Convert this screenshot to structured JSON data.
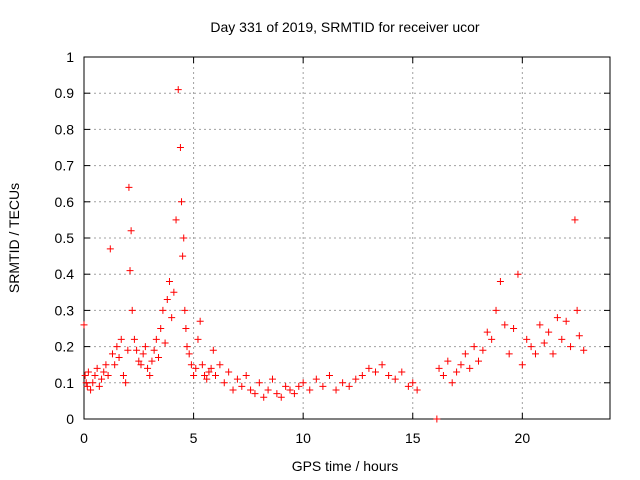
{
  "chart_data": {
    "type": "scatter",
    "title": "Day 331 of 2019, SRMTID for receiver ucor",
    "xlabel": "GPS time / hours",
    "ylabel": "SRMTID / TECUs",
    "xlim": [
      0,
      24
    ],
    "ylim": [
      0,
      1
    ],
    "xticks": [
      0,
      5,
      10,
      15,
      20
    ],
    "xtick_labels": [
      "0",
      "5",
      "10",
      "15",
      "20"
    ],
    "yticks": [
      0,
      0.1,
      0.2,
      0.3,
      0.4,
      0.5,
      0.6,
      0.7,
      0.8,
      0.9,
      1
    ],
    "ytick_labels": [
      "0",
      "0.1",
      "0.2",
      "0.3",
      "0.4",
      "0.5",
      "0.6",
      "0.7",
      "0.8",
      "0.9",
      "1"
    ],
    "grid": true,
    "marker": "+",
    "series": [
      {
        "name": "SRMTID",
        "color": "#ff0000",
        "x": [
          0.0,
          0.05,
          0.1,
          0.15,
          0.2,
          0.3,
          0.4,
          0.5,
          0.6,
          0.7,
          0.8,
          0.9,
          1.0,
          1.1,
          1.2,
          1.3,
          1.4,
          1.5,
          1.6,
          1.7,
          1.8,
          1.9,
          2.0,
          2.05,
          2.1,
          2.15,
          2.2,
          2.3,
          2.4,
          2.5,
          2.6,
          2.7,
          2.8,
          2.9,
          3.0,
          3.1,
          3.2,
          3.3,
          3.4,
          3.5,
          3.6,
          3.7,
          3.8,
          3.9,
          4.0,
          4.1,
          4.2,
          4.3,
          4.4,
          4.45,
          4.5,
          4.55,
          4.6,
          4.65,
          4.7,
          4.8,
          4.9,
          5.0,
          5.1,
          5.2,
          5.3,
          5.4,
          5.5,
          5.6,
          5.7,
          5.8,
          5.9,
          6.0,
          6.2,
          6.4,
          6.6,
          6.8,
          7.0,
          7.2,
          7.4,
          7.6,
          7.8,
          8.0,
          8.2,
          8.4,
          8.6,
          8.8,
          9.0,
          9.2,
          9.4,
          9.6,
          9.8,
          10.0,
          10.3,
          10.6,
          10.9,
          11.2,
          11.5,
          11.8,
          12.1,
          12.4,
          12.7,
          13.0,
          13.3,
          13.6,
          13.9,
          14.2,
          14.5,
          14.8,
          15.0,
          15.2,
          16.1,
          16.2,
          16.4,
          16.6,
          16.8,
          17.0,
          17.2,
          17.4,
          17.6,
          17.8,
          18.0,
          18.2,
          18.4,
          18.6,
          18.8,
          19.0,
          19.2,
          19.4,
          19.6,
          19.8,
          20.0,
          20.2,
          20.4,
          20.6,
          20.8,
          21.0,
          21.2,
          21.4,
          21.6,
          21.8,
          22.0,
          22.2,
          22.4,
          22.5,
          22.6,
          22.8
        ],
        "y": [
          0.26,
          0.12,
          0.1,
          0.09,
          0.13,
          0.08,
          0.1,
          0.12,
          0.14,
          0.09,
          0.11,
          0.13,
          0.15,
          0.12,
          0.47,
          0.18,
          0.15,
          0.2,
          0.17,
          0.22,
          0.12,
          0.1,
          0.19,
          0.64,
          0.41,
          0.52,
          0.3,
          0.22,
          0.19,
          0.16,
          0.15,
          0.18,
          0.2,
          0.14,
          0.12,
          0.16,
          0.19,
          0.22,
          0.17,
          0.25,
          0.3,
          0.21,
          0.33,
          0.38,
          0.28,
          0.35,
          0.55,
          0.91,
          0.75,
          0.6,
          0.45,
          0.5,
          0.3,
          0.25,
          0.2,
          0.18,
          0.15,
          0.12,
          0.14,
          0.22,
          0.27,
          0.15,
          0.12,
          0.11,
          0.13,
          0.14,
          0.19,
          0.12,
          0.15,
          0.1,
          0.13,
          0.08,
          0.11,
          0.09,
          0.12,
          0.08,
          0.07,
          0.1,
          0.06,
          0.08,
          0.11,
          0.07,
          0.06,
          0.09,
          0.08,
          0.07,
          0.09,
          0.1,
          0.08,
          0.11,
          0.09,
          0.12,
          0.08,
          0.1,
          0.09,
          0.11,
          0.12,
          0.14,
          0.13,
          0.15,
          0.12,
          0.11,
          0.13,
          0.09,
          0.1,
          0.08,
          0.0,
          0.14,
          0.12,
          0.16,
          0.1,
          0.13,
          0.15,
          0.18,
          0.14,
          0.2,
          0.16,
          0.19,
          0.24,
          0.22,
          0.3,
          0.38,
          0.26,
          0.18,
          0.25,
          0.4,
          0.15,
          0.22,
          0.2,
          0.18,
          0.26,
          0.21,
          0.24,
          0.18,
          0.28,
          0.22,
          0.27,
          0.2,
          0.55,
          0.3,
          0.23,
          0.19
        ]
      }
    ]
  }
}
